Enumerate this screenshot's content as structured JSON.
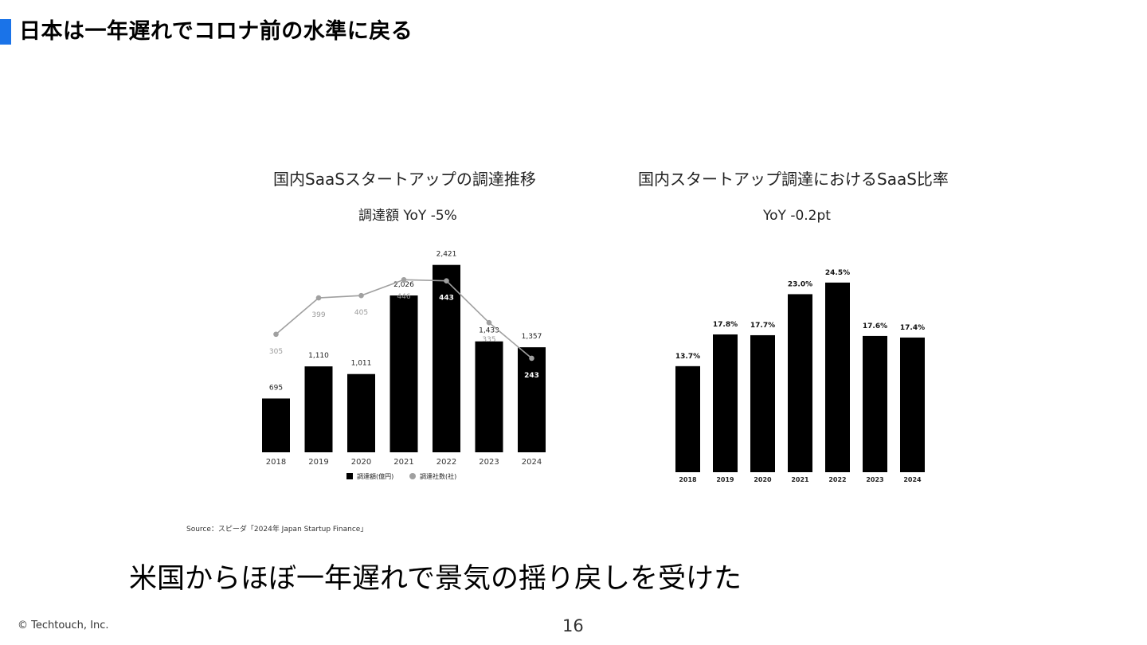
{
  "slide": {
    "title": "日本は一年遅れでコロナ前の水準に戻る",
    "accent_color": "#1a73e8",
    "source": "Source：スピーダ「2024年 Japan Startup Finance」",
    "conclusion": "米国からほぼ一年遅れで景気の揺り戻しを受けた",
    "copyright": "© Techtouch, Inc.",
    "page_number": "16"
  },
  "chart_data": [
    {
      "type": "bar",
      "title": "国内SaaSスタートアップの調達推移",
      "subtitle": "調達額 YoY -5%",
      "categories": [
        "2018",
        "2019",
        "2020",
        "2021",
        "2022",
        "2023",
        "2024"
      ],
      "series": [
        {
          "name": "調達額(億円)",
          "type": "bar",
          "color": "#000000",
          "values": [
            695,
            1110,
            1011,
            2026,
            2421,
            1433,
            1357
          ],
          "labels": [
            "695",
            "1,110",
            "1,011",
            "2,026",
            "2,421",
            "1,433",
            "1,357"
          ]
        },
        {
          "name": "調達社数(社)",
          "type": "line",
          "color": "#a0a0a0",
          "values": [
            305,
            399,
            405,
            446,
            443,
            335,
            243
          ],
          "labels": [
            "305",
            "399",
            "405",
            "446",
            "443",
            "335",
            "243"
          ]
        }
      ],
      "ylim": [
        0,
        2500
      ],
      "ylim_secondary": [
        0,
        500
      ],
      "legend": "bottom",
      "grid": false
    },
    {
      "type": "bar",
      "title": "国内スタートアップ調達におけるSaaS比率",
      "subtitle": "YoY -0.2pt",
      "categories": [
        "2018",
        "2019",
        "2020",
        "2021",
        "2022",
        "2023",
        "2024"
      ],
      "values": [
        13.7,
        17.8,
        17.7,
        23.0,
        24.5,
        17.6,
        17.4
      ],
      "labels": [
        "13.7%",
        "17.8%",
        "17.7%",
        "23.0%",
        "24.5%",
        "17.6%",
        "17.4%"
      ],
      "color": "#000000",
      "ylim": [
        0,
        25
      ],
      "grid": false
    }
  ]
}
